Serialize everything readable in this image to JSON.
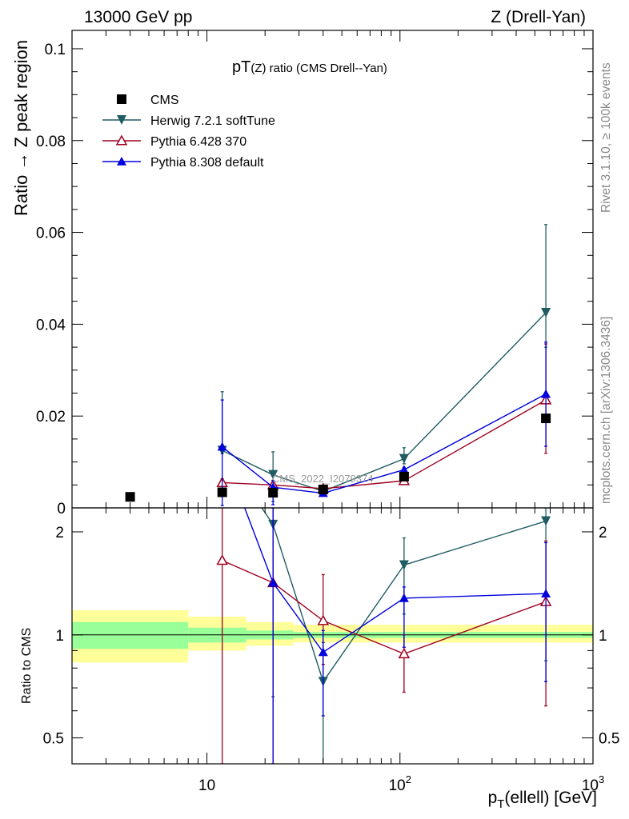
{
  "header": {
    "left": "13000 GeV pp",
    "right": "Z (Drell-Yan)"
  },
  "side_labels": {
    "rivet": "Rivet 3.1.10, ≥ 100k events",
    "mcplots": "mcplots.cern.ch [arXiv:1306.3436]"
  },
  "chart_data": {
    "type": "line",
    "title_main": "pT",
    "title_sub": "(Z)",
    "title_rest": " ratio (CMS Drell--Yan)",
    "watermark": "CMS_2022_I2079374",
    "xscale": "log",
    "xlim": [
      2,
      1000
    ],
    "xticks": [
      {
        "value": 10,
        "label": "10"
      },
      {
        "value": 100,
        "label": "10",
        "sup": "2"
      },
      {
        "value": 1000,
        "label": "10",
        "sup": "3"
      }
    ],
    "xlabel_main": "p",
    "xlabel_sub": "T",
    "xlabel_rest": "(ellell) [GeV]",
    "main_panel": {
      "ylabel": "Ratio → Z peak region",
      "ylim": [
        0,
        0.104
      ],
      "yticks": [
        {
          "value": 0,
          "label": "0"
        },
        {
          "value": 0.02,
          "label": "0.02"
        },
        {
          "value": 0.04,
          "label": "0.04"
        },
        {
          "value": 0.06,
          "label": "0.06"
        },
        {
          "value": 0.08,
          "label": "0.08"
        },
        {
          "value": 0.1,
          "label": "0.1"
        }
      ]
    },
    "ratio_panel": {
      "ylabel": "Ratio to CMS",
      "yscale": "log",
      "ylim": [
        0.42,
        2.35
      ],
      "yticks": [
        {
          "value": 0.5,
          "label": "0.5"
        },
        {
          "value": 1,
          "label": "1"
        },
        {
          "value": 2,
          "label": "2"
        }
      ],
      "band_edges": [
        2,
        8,
        16,
        28,
        1000
      ],
      "inner_band": [
        [
          0.91,
          1.09
        ],
        [
          0.95,
          1.05
        ],
        [
          0.97,
          1.03
        ],
        [
          0.98,
          1.02
        ]
      ],
      "outer_band": [
        [
          0.83,
          1.18
        ],
        [
          0.9,
          1.13
        ],
        [
          0.93,
          1.09
        ],
        [
          0.95,
          1.07
        ]
      ]
    },
    "legend_position": "top-left",
    "series": [
      {
        "name": "CMS",
        "color": "#000000",
        "marker": "square",
        "line": false,
        "x": [
          4,
          12,
          22,
          40,
          105,
          570
        ],
        "y": [
          0.0024,
          0.0034,
          0.0033,
          0.004,
          0.0068,
          0.0195
        ]
      },
      {
        "name": "Herwig 7.2.1 softTune",
        "color": "#1f5c64",
        "marker": "triangle-down",
        "line": true,
        "x": [
          12,
          22,
          40,
          105,
          570
        ],
        "y": [
          0.0125,
          0.0072,
          0.0036,
          0.0107,
          0.0425
        ],
        "err_lo": [
          0.0007,
          0.0058,
          0.0008,
          0.0011,
          0.0075
        ],
        "err_hi": [
          0.0128,
          0.005,
          0.0007,
          0.0024,
          0.0192
        ],
        "ratio": [
          3.5,
          2.1,
          0.73,
          1.6,
          2.15
        ],
        "ratio_lo": [
          null,
          0.66,
          0.34,
          1.15,
          0.84
        ],
        "ratio_hi": [
          null,
          2.35,
          0.95,
          1.92,
          2.35
        ]
      },
      {
        "name": "Pythia 6.428 370",
        "color": "#a00020",
        "marker": "triangle-open",
        "line": true,
        "x": [
          12,
          22,
          40,
          105,
          570
        ],
        "y": [
          0.0055,
          0.005,
          0.0042,
          0.0059,
          0.0235
        ],
        "err_lo": [
          0.0015,
          0.0007,
          0.0011,
          0.0004,
          0.0116
        ],
        "err_hi": [
          0.0008,
          0.0005,
          0.0004,
          0.0004,
          0.0122
        ],
        "ratio": [
          1.65,
          1.42,
          1.1,
          0.88,
          1.25
        ],
        "ratio_lo": [
          0.42,
          0.42,
          0.82,
          0.68,
          0.62
        ],
        "ratio_hi": [
          2.35,
          2.35,
          1.5,
          1.0,
          1.88
        ]
      },
      {
        "name": "Pythia 8.308 default",
        "color": "#0000dd",
        "marker": "triangle-up",
        "line": true,
        "x": [
          12,
          22,
          40,
          105,
          570
        ],
        "y": [
          0.0133,
          0.0045,
          0.0032,
          0.0083,
          0.0248
        ],
        "err_lo": [
          0.0128,
          0.0038,
          0.0006,
          0.0013,
          0.0114
        ],
        "err_hi": [
          0.0102,
          0.0015,
          0.0004,
          0.0005,
          0.0113
        ],
        "ratio": [
          3.5,
          1.42,
          0.89,
          1.28,
          1.32
        ],
        "ratio_lo": [
          null,
          0.42,
          0.58,
          0.92,
          0.73
        ],
        "ratio_hi": [
          null,
          2.35,
          1.03,
          1.38,
          1.86
        ]
      }
    ]
  }
}
